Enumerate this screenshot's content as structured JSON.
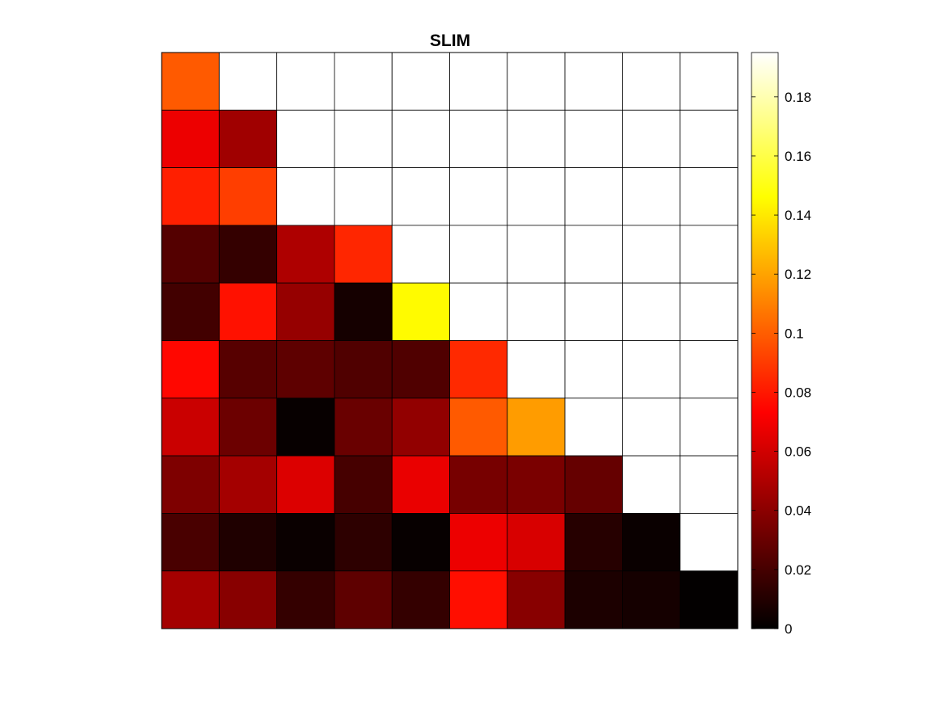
{
  "chart_data": {
    "type": "heatmap",
    "title": "SLIM",
    "xlabel": "",
    "ylabel": "",
    "colormap": "hot",
    "color_range": [
      0,
      0.195
    ],
    "colorbar_ticks": [
      0,
      0.02,
      0.04,
      0.06,
      0.08,
      0.1,
      0.12,
      0.14,
      0.16,
      0.18
    ],
    "colorbar_tick_labels": [
      "0",
      "0.02",
      "0.04",
      "0.06",
      "0.08",
      "0.1",
      "0.12",
      "0.14",
      "0.16",
      "0.18"
    ],
    "upper_triangle_fill": "#ffffff",
    "rows": 10,
    "cols": 10,
    "values": [
      [
        0.099,
        null,
        null,
        null,
        null,
        null,
        null,
        null,
        null,
        null
      ],
      [
        0.068,
        0.046,
        null,
        null,
        null,
        null,
        null,
        null,
        null,
        null
      ],
      [
        0.082,
        0.091,
        null,
        null,
        null,
        null,
        null,
        null,
        null,
        null
      ],
      [
        0.024,
        0.015,
        0.05,
        0.084,
        null,
        null,
        null,
        null,
        null,
        null
      ],
      [
        0.019,
        0.078,
        0.043,
        0.006,
        0.145,
        null,
        null,
        null,
        null,
        null
      ],
      [
        0.075,
        0.025,
        0.027,
        0.023,
        0.023,
        0.085,
        null,
        null,
        null,
        null
      ],
      [
        0.058,
        0.031,
        0.002,
        0.03,
        0.042,
        0.099,
        0.118,
        null,
        null,
        null
      ],
      [
        0.036,
        0.047,
        0.063,
        0.02,
        0.067,
        0.034,
        0.035,
        0.029,
        null,
        null
      ],
      [
        0.021,
        0.009,
        0.003,
        0.013,
        0.002,
        0.068,
        0.062,
        0.011,
        0.003,
        null
      ],
      [
        0.047,
        0.039,
        0.015,
        0.027,
        0.015,
        0.077,
        0.039,
        0.008,
        0.006,
        0.001
      ]
    ]
  }
}
